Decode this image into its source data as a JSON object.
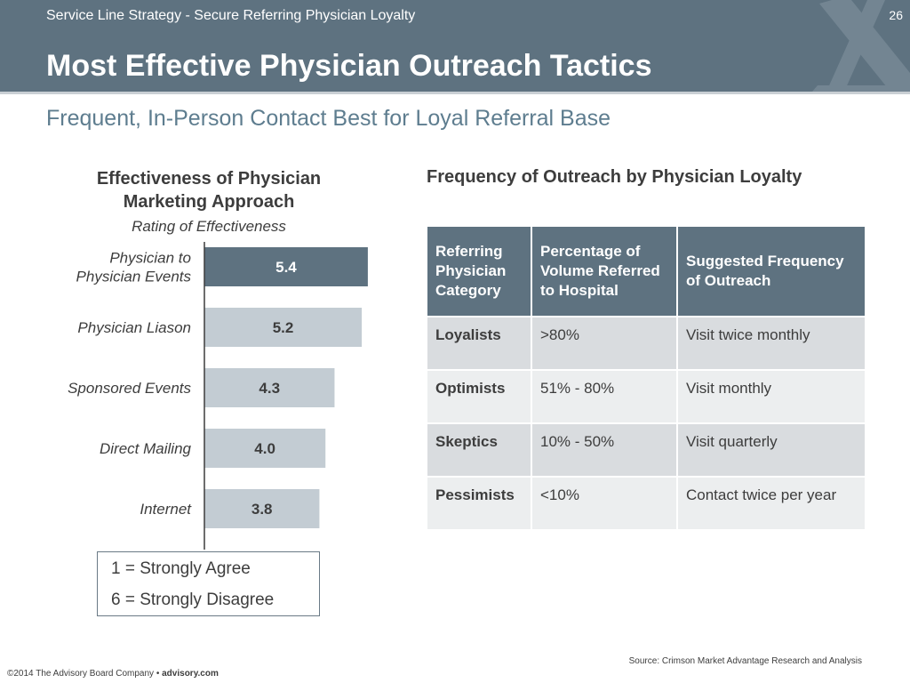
{
  "header": {
    "kicker": "Service Line Strategy - Secure Referring Physician Loyalty",
    "page_number": "26",
    "title": "Most Effective Physician Outreach Tactics",
    "logo_icon": "advisory-board-logo-icon"
  },
  "subtitle": "Frequent, In-Person Contact Best for Loyal Referral Base",
  "left_panel": {
    "heading_line1": "Effectiveness of Physician",
    "heading_line2": "Marketing Approach",
    "subheading": "Rating of Effectiveness"
  },
  "chart_data": {
    "type": "bar",
    "orientation": "horizontal",
    "title": "Effectiveness of Physician Marketing Approach",
    "subtitle": "Rating of Effectiveness",
    "categories": [
      "Physician to Physician Events",
      "Physician Liason",
      "Sponsored Events",
      "Direct Mailing",
      "Internet"
    ],
    "category_lines": [
      [
        "Physician to",
        "Physician Events"
      ],
      [
        "Physician Liason"
      ],
      [
        "Sponsored Events"
      ],
      [
        "Direct Mailing"
      ],
      [
        "Internet"
      ]
    ],
    "values": [
      5.4,
      5.2,
      4.3,
      4.0,
      3.8
    ],
    "value_labels": [
      "5.4",
      "5.2",
      "4.3",
      "4.0",
      "3.8"
    ],
    "highlight_index": 0,
    "colors": {
      "highlight": "#5e7280",
      "default": "#c3ccd3",
      "highlight_text": "#ffffff",
      "default_text": "#3d3d3d"
    },
    "xlim": [
      0,
      6.9
    ],
    "grid": false
  },
  "legend": {
    "line1": "1 = Strongly Agree",
    "line2": "6 = Strongly Disagree"
  },
  "right_panel": {
    "heading": "Frequency of Outreach by Physician Loyalty",
    "table": {
      "headers": [
        "Referring Physician Category",
        "Percentage of Volume Referred to Hospital",
        "Suggested Frequency of Outreach"
      ],
      "rows": [
        [
          "Loyalists",
          ">80%",
          "Visit twice monthly"
        ],
        [
          "Optimists",
          "51% - 80%",
          "Visit monthly"
        ],
        [
          "Skeptics",
          "10% - 50%",
          "Visit quarterly"
        ],
        [
          "Pessimists",
          "<10%",
          "Contact twice per year"
        ]
      ]
    }
  },
  "source": "Source: Crimson Market Advantage Research and Analysis",
  "footer": {
    "copyright": "©2014 The Advisory Board Company • ",
    "site": "advisory.com"
  },
  "colors": {
    "header_bg": "#5e7280",
    "subtitle": "#5e7d8f",
    "table_row_dark": "#d9dcdf",
    "table_row_light": "#eceeef"
  }
}
